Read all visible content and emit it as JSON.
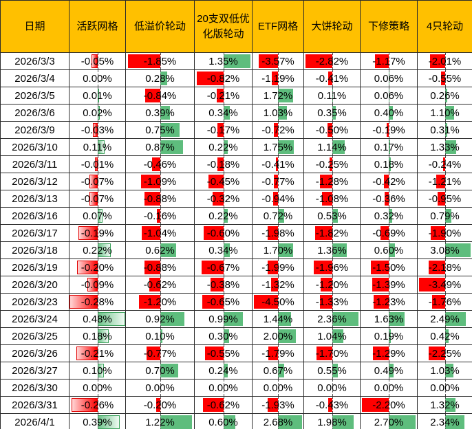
{
  "table": {
    "header": [
      "日期",
      "活跃网格",
      "低溢价轮动",
      "20支双低优化版轮动",
      "ETF网格",
      "大饼轮动",
      "下修策略",
      "4只轮动"
    ],
    "value_format": "percent_2dp",
    "rows": [
      {
        "date": "2026/3/3",
        "values": [
          -0.05,
          -1.85,
          1.35,
          -3.57,
          -2.82,
          -1.17,
          -2.01
        ]
      },
      {
        "date": "2026/3/4",
        "values": [
          0.0,
          0.28,
          -0.82,
          -1.19,
          -0.41,
          0.06,
          -0.55
        ]
      },
      {
        "date": "2026/3/5",
        "values": [
          0.01,
          -0.84,
          -0.21,
          1.72,
          0.11,
          0.06,
          0.26
        ]
      },
      {
        "date": "2026/3/6",
        "values": [
          0.02,
          0.39,
          0.34,
          1.03,
          0.35,
          0.4,
          1.1
        ]
      },
      {
        "date": "2026/3/9",
        "values": [
          -0.03,
          0.75,
          -0.17,
          -0.72,
          -0.5,
          -0.19,
          0.31
        ]
      },
      {
        "date": "2026/3/10",
        "values": [
          0.11,
          0.87,
          0.22,
          1.75,
          1.14,
          0.17,
          1.33
        ]
      },
      {
        "date": "2026/3/11",
        "values": [
          -0.01,
          -0.46,
          -0.18,
          -0.41,
          -0.25,
          0.18,
          -0.24
        ]
      },
      {
        "date": "2026/3/12",
        "values": [
          -0.07,
          -1.09,
          -0.45,
          -0.77,
          -1.28,
          -0.42,
          -1.21
        ]
      },
      {
        "date": "2026/3/13",
        "values": [
          -0.07,
          -0.88,
          -0.32,
          -0.94,
          -1.08,
          -0.36,
          -0.95
        ]
      },
      {
        "date": "2026/3/16",
        "values": [
          0.07,
          -0.16,
          0.22,
          0.72,
          0.53,
          0.32,
          0.79
        ]
      },
      {
        "date": "2026/3/17",
        "values": [
          -0.19,
          -1.04,
          -0.6,
          -1.98,
          -1.82,
          -0.69,
          -1.9
        ]
      },
      {
        "date": "2026/3/18",
        "values": [
          0.22,
          0.62,
          0.34,
          1.7,
          1.36,
          0.6,
          3.08
        ]
      },
      {
        "date": "2026/3/19",
        "values": [
          -0.2,
          -0.88,
          -0.67,
          -1.99,
          -1.96,
          -1.5,
          -2.18
        ]
      },
      {
        "date": "2026/3/20",
        "values": [
          -0.09,
          -0.62,
          -0.38,
          -1.32,
          -1.2,
          -1.39,
          -3.49
        ]
      },
      {
        "date": "2026/3/23",
        "values": [
          -0.28,
          -1.2,
          -0.65,
          -4.5,
          -1.33,
          -1.23,
          -1.76
        ]
      },
      {
        "date": "2026/3/24",
        "values": [
          0.48,
          0.92,
          0.99,
          1.44,
          2.36,
          1.63,
          2.49
        ]
      },
      {
        "date": "2026/3/25",
        "values": [
          0.18,
          0.1,
          0.3,
          2.0,
          1.04,
          0.19,
          0.42
        ]
      },
      {
        "date": "2026/3/26",
        "values": [
          -0.21,
          -0.77,
          -0.55,
          -1.79,
          -1.7,
          -1.29,
          -2.25
        ]
      },
      {
        "date": "2026/3/27",
        "values": [
          0.1,
          0.7,
          0.24,
          0.67,
          0.55,
          0.49,
          1.03
        ]
      },
      {
        "date": "2026/3/30",
        "values": [
          0.0,
          0.0,
          0.0,
          0.0,
          0.0,
          0.0,
          0.0
        ]
      },
      {
        "date": "2026/3/31",
        "values": [
          -0.26,
          -0.2,
          -0.62,
          -1.93,
          -0.43,
          -2.2,
          1.32
        ]
      },
      {
        "date": "2026/4/1",
        "values": [
          0.39,
          1.22,
          0.6,
          2.68,
          1.98,
          2.7,
          2.34
        ]
      }
    ],
    "bar_style_by_column": [
      "gradient",
      "solid",
      "solid",
      "solid",
      "solid",
      "solid",
      "solid"
    ]
  },
  "colors": {
    "header_bg": "#FFC000",
    "positive_bar": "#5EBD7D",
    "negative_bar": "#FF0000",
    "gradient_positive_border": "#3FA45F",
    "gradient_negative_border": "#E00000",
    "grid_border": "#2B2B2B",
    "axis_line": "#4D4D4D",
    "text": "#000000"
  }
}
